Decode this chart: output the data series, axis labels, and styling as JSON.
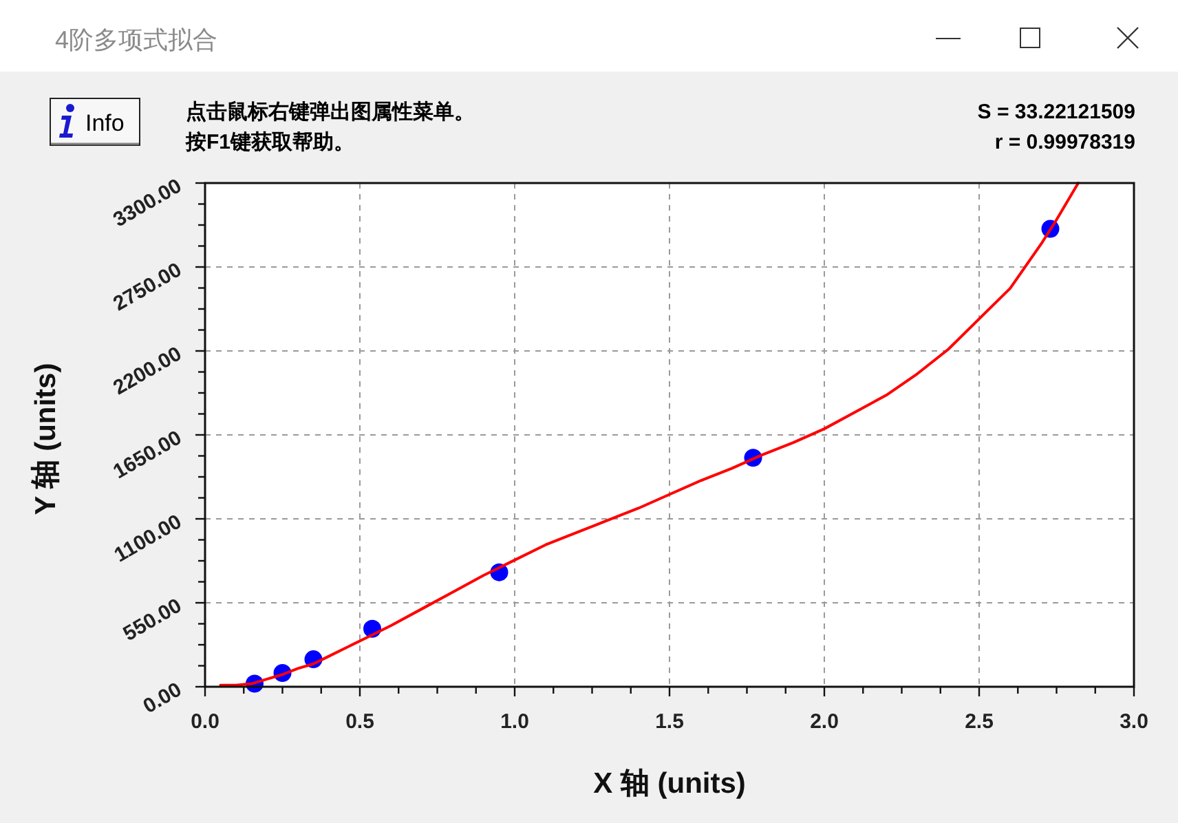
{
  "chart_data": {
    "type": "scatter",
    "title": "4阶多项式拟合",
    "xlabel": "X 轴 (units)",
    "ylabel": "Y 轴 (units)",
    "annotations": [
      "Info",
      "点击鼠标右键弹出图属性菜单。",
      "按F1键获取帮助。",
      "S = 33.22121509",
      "r = 0.99978319"
    ],
    "xlim": [
      0,
      3
    ],
    "xticks": [
      {
        "value": 0,
        "label": "0.0"
      },
      {
        "value": 0.125,
        "label": null
      },
      {
        "value": 0.25,
        "label": null
      },
      {
        "value": 0.375,
        "label": null
      },
      {
        "value": 0.5,
        "label": "0.5"
      },
      {
        "value": 0.625,
        "label": null
      },
      {
        "value": 0.75,
        "label": null
      },
      {
        "value": 0.875,
        "label": null
      },
      {
        "value": 1,
        "label": "1.0"
      },
      {
        "value": 1.125,
        "label": null
      },
      {
        "value": 1.25,
        "label": null
      },
      {
        "value": 1.375,
        "label": null
      },
      {
        "value": 1.5,
        "label": "1.5"
      },
      {
        "value": 1.625,
        "label": null
      },
      {
        "value": 1.75,
        "label": null
      },
      {
        "value": 1.875,
        "label": null
      },
      {
        "value": 2,
        "label": "2.0"
      },
      {
        "value": 2.125,
        "label": null
      },
      {
        "value": 2.25,
        "label": null
      },
      {
        "value": 2.375,
        "label": null
      },
      {
        "value": 2.5,
        "label": "2.5"
      },
      {
        "value": 2.625,
        "label": null
      },
      {
        "value": 2.75,
        "label": null
      },
      {
        "value": 2.875,
        "label": null
      },
      {
        "value": 3,
        "label": "3.0"
      }
    ],
    "ylim": [
      0,
      3300
    ],
    "yticks": [
      {
        "value": 0,
        "label": "0.00"
      },
      {
        "value": 137.5,
        "label": null
      },
      {
        "value": 275,
        "label": null
      },
      {
        "value": 412.5,
        "label": null
      },
      {
        "value": 550,
        "label": "550.00"
      },
      {
        "value": 687.5,
        "label": null
      },
      {
        "value": 825,
        "label": null
      },
      {
        "value": 962.5,
        "label": null
      },
      {
        "value": 1100,
        "label": "1100.00"
      },
      {
        "value": 1237.5,
        "label": null
      },
      {
        "value": 1375,
        "label": null
      },
      {
        "value": 1512.5,
        "label": null
      },
      {
        "value": 1650,
        "label": "1650.00"
      },
      {
        "value": 1787.5,
        "label": null
      },
      {
        "value": 1925,
        "label": null
      },
      {
        "value": 2062.5,
        "label": null
      },
      {
        "value": 2200,
        "label": "2200.00"
      },
      {
        "value": 2337.5,
        "label": null
      },
      {
        "value": 2475,
        "label": null
      },
      {
        "value": 2612.5,
        "label": null
      },
      {
        "value": 2750,
        "label": "2750.00"
      },
      {
        "value": 2887.5,
        "label": null
      },
      {
        "value": 3025,
        "label": null
      },
      {
        "value": 3162.5,
        "label": null
      },
      {
        "value": 3300,
        "label": "3300.00"
      }
    ],
    "grid": true,
    "marker": "circle",
    "line_style": "solid",
    "series": [
      {
        "color": "#0000ff",
        "x": [
          0.16,
          0.25,
          0.35,
          0.54,
          0.95,
          1.77,
          2.73
        ],
        "values": [
          20,
          90,
          180,
          380,
          750,
          1500,
          3000
        ]
      },
      {
        "type": "line",
        "color": "#ff0000",
        "marker": "none",
        "x": [
          0.05,
          0.1,
          0.15,
          0.2,
          0.25,
          0.3,
          0.35,
          0.4,
          0.45,
          0.5,
          0.6,
          0.7,
          0.8,
          0.9,
          0.95,
          1.0,
          1.1,
          1.2,
          1.3,
          1.4,
          1.5,
          1.6,
          1.7,
          1.8,
          1.9,
          2.0,
          2.1,
          2.2,
          2.3,
          2.4,
          2.5,
          2.6,
          2.7,
          2.75,
          2.82
        ],
        "values": [
          10,
          10,
          20,
          50,
          80,
          120,
          150,
          200,
          250,
          300,
          400,
          510,
          620,
          730,
          780,
          830,
          930,
          1010,
          1090,
          1170,
          1260,
          1350,
          1430,
          1520,
          1600,
          1690,
          1800,
          1910,
          2050,
          2210,
          2410,
          2610,
          2900,
          3060,
          3300
        ]
      }
    ]
  }
}
